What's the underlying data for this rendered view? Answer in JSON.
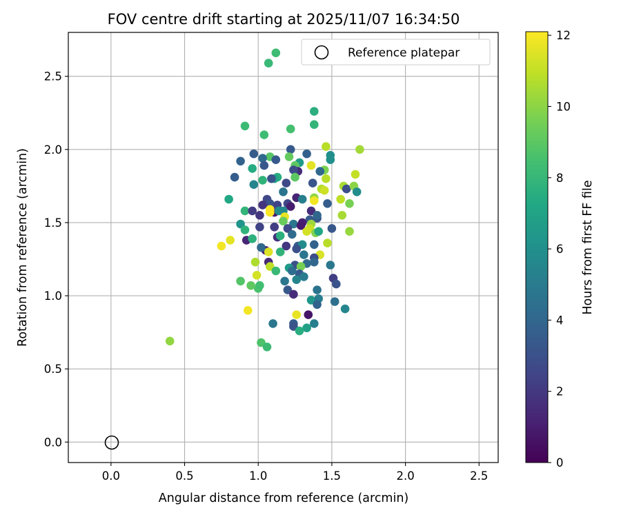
{
  "chart_data": {
    "type": "scatter",
    "title": "FOV centre drift starting at 2025/11/07 16:34:50",
    "xlabel": "Angular distance from reference (arcmin)",
    "ylabel": "Rotation from reference (arcmin)",
    "xlim": [
      -0.29,
      2.63
    ],
    "ylim": [
      -0.14,
      2.8
    ],
    "xticks": [
      "0.0",
      "0.5",
      "1.0",
      "1.5",
      "2.0",
      "2.5"
    ],
    "yticks": [
      "0.0",
      "0.5",
      "1.0",
      "1.5",
      "2.0",
      "2.5"
    ],
    "grid": true,
    "legend": {
      "placement": "top-right",
      "label": "Reference platepar"
    },
    "reference_point": {
      "x": 0.0,
      "y": 0.0
    },
    "colorbar": {
      "label": "Hours from first FF file",
      "range": [
        0,
        12.1
      ],
      "ticks": [
        "0",
        "2",
        "4",
        "6",
        "8",
        "10",
        "12"
      ],
      "colormap": "viridis"
    },
    "points": [
      [
        1.12,
        2.66,
        8.3
      ],
      [
        1.07,
        2.59,
        8.1
      ],
      [
        1.38,
        2.26,
        7.6
      ],
      [
        1.38,
        2.17,
        7.9
      ],
      [
        0.91,
        2.16,
        8.2
      ],
      [
        1.22,
        2.14,
        8.5
      ],
      [
        1.04,
        2.1,
        8.3
      ],
      [
        1.46,
        2.02,
        10.8
      ],
      [
        1.69,
        2.0,
        10.4
      ],
      [
        1.22,
        2.0,
        3.4
      ],
      [
        0.97,
        1.97,
        3.5
      ],
      [
        1.33,
        1.97,
        3.7
      ],
      [
        1.49,
        1.96,
        5.9
      ],
      [
        1.08,
        1.95,
        8.9
      ],
      [
        1.21,
        1.95,
        9.2
      ],
      [
        1.49,
        1.93,
        6.0
      ],
      [
        1.03,
        1.94,
        4.2
      ],
      [
        1.12,
        1.93,
        3.4
      ],
      [
        0.88,
        1.92,
        3.8
      ],
      [
        1.28,
        1.91,
        6.6
      ],
      [
        1.25,
        1.89,
        9.0
      ],
      [
        1.36,
        1.89,
        11.6
      ],
      [
        1.04,
        1.89,
        3.3
      ],
      [
        1.45,
        1.86,
        9.7
      ],
      [
        1.42,
        1.85,
        4.1
      ],
      [
        1.27,
        1.85,
        1.5
      ],
      [
        1.24,
        1.86,
        2.8
      ],
      [
        0.96,
        1.87,
        7.4
      ],
      [
        1.66,
        1.83,
        11.0
      ],
      [
        1.13,
        1.81,
        7.5
      ],
      [
        1.03,
        1.79,
        7.8
      ],
      [
        1.11,
        1.8,
        7.0
      ],
      [
        1.09,
        1.8,
        3.1
      ],
      [
        0.84,
        1.81,
        3.6
      ],
      [
        1.25,
        1.81,
        9.0
      ],
      [
        1.46,
        1.8,
        10.8
      ],
      [
        1.19,
        1.77,
        2.7
      ],
      [
        1.37,
        1.77,
        3.2
      ],
      [
        1.43,
        1.73,
        10.7
      ],
      [
        1.45,
        1.72,
        11.2
      ],
      [
        1.58,
        1.75,
        10.5
      ],
      [
        1.6,
        1.73,
        2.9
      ],
      [
        1.65,
        1.75,
        10.0
      ],
      [
        0.97,
        1.76,
        5.4
      ],
      [
        1.67,
        1.71,
        5.9
      ],
      [
        1.17,
        1.71,
        4.7
      ],
      [
        1.06,
        1.66,
        2.6
      ],
      [
        0.8,
        1.66,
        7.2
      ],
      [
        1.26,
        1.67,
        1.2
      ],
      [
        1.38,
        1.67,
        10.1
      ],
      [
        1.38,
        1.65,
        11.9
      ],
      [
        1.3,
        1.66,
        5.2
      ],
      [
        1.56,
        1.66,
        10.9
      ],
      [
        1.62,
        1.63,
        9.6
      ],
      [
        1.47,
        1.63,
        3.6
      ],
      [
        1.08,
        1.63,
        3.1
      ],
      [
        1.03,
        1.62,
        1.8
      ],
      [
        1.13,
        1.62,
        2.4
      ],
      [
        1.2,
        1.63,
        2.5
      ],
      [
        1.22,
        1.61,
        1.0
      ],
      [
        1.11,
        1.57,
        0.9
      ],
      [
        1.14,
        1.58,
        5.8
      ],
      [
        1.17,
        1.58,
        5.6
      ],
      [
        1.08,
        1.57,
        12.0
      ],
      [
        1.36,
        1.58,
        1.6
      ],
      [
        1.08,
        1.59,
        12.1
      ],
      [
        0.91,
        1.58,
        7.9
      ],
      [
        0.96,
        1.58,
        2.1
      ],
      [
        1.4,
        1.53,
        3.2
      ],
      [
        1.4,
        1.55,
        4.0
      ],
      [
        1.18,
        1.54,
        11.7
      ],
      [
        1.01,
        1.55,
        1.9
      ],
      [
        1.57,
        1.55,
        10.5
      ],
      [
        1.35,
        1.52,
        3.4
      ],
      [
        1.17,
        1.51,
        9.3
      ],
      [
        1.36,
        1.49,
        10.3
      ],
      [
        1.35,
        1.46,
        11.1
      ],
      [
        1.24,
        1.49,
        4.8
      ],
      [
        1.3,
        1.5,
        1.1
      ],
      [
        1.29,
        1.48,
        0.9
      ],
      [
        1.11,
        1.47,
        2.2
      ],
      [
        1.01,
        1.47,
        2.4
      ],
      [
        1.5,
        1.46,
        3.3
      ],
      [
        1.2,
        1.46,
        2.6
      ],
      [
        0.88,
        1.49,
        6.2
      ],
      [
        0.91,
        1.45,
        7.8
      ],
      [
        1.39,
        1.43,
        9.8
      ],
      [
        1.62,
        1.44,
        10.2
      ],
      [
        1.41,
        1.44,
        7.2
      ],
      [
        1.33,
        1.44,
        11.3
      ],
      [
        1.23,
        1.42,
        4.2
      ],
      [
        1.13,
        1.4,
        1.7
      ],
      [
        0.92,
        1.38,
        1.3
      ],
      [
        0.81,
        1.38,
        11.6
      ],
      [
        0.96,
        1.39,
        7.7
      ],
      [
        1.15,
        1.41,
        7.6
      ],
      [
        1.19,
        1.34,
        1.9
      ],
      [
        1.27,
        1.34,
        3.6
      ],
      [
        1.3,
        1.35,
        5.8
      ],
      [
        1.38,
        1.35,
        3.8
      ],
      [
        1.15,
        1.3,
        7.8
      ],
      [
        1.05,
        1.31,
        1.2
      ],
      [
        1.07,
        1.3,
        11.5
      ],
      [
        1.47,
        1.36,
        10.8
      ],
      [
        0.75,
        1.34,
        11.9
      ],
      [
        1.26,
        1.32,
        3.0
      ],
      [
        1.02,
        1.33,
        4.1
      ],
      [
        1.42,
        1.28,
        11.4
      ],
      [
        1.31,
        1.28,
        4.7
      ],
      [
        1.38,
        1.26,
        2.8
      ],
      [
        0.98,
        1.23,
        10.6
      ],
      [
        1.07,
        1.23,
        1.4
      ],
      [
        1.25,
        1.21,
        3.0
      ],
      [
        1.33,
        1.22,
        4.2
      ],
      [
        1.38,
        1.23,
        4.0
      ],
      [
        1.49,
        1.21,
        4.8
      ],
      [
        1.29,
        1.2,
        9.6
      ],
      [
        1.08,
        1.2,
        10.9
      ],
      [
        1.21,
        1.19,
        6.5
      ],
      [
        1.12,
        1.17,
        8.1
      ],
      [
        1.28,
        1.15,
        3.4
      ],
      [
        1.23,
        1.17,
        4.3
      ],
      [
        0.99,
        1.14,
        11.3
      ],
      [
        1.51,
        1.12,
        2.2
      ],
      [
        1.26,
        1.11,
        5.4
      ],
      [
        1.31,
        1.13,
        5.0
      ],
      [
        1.53,
        1.08,
        3.1
      ],
      [
        0.88,
        1.1,
        8.8
      ],
      [
        1.18,
        1.1,
        4.7
      ],
      [
        1.0,
        1.05,
        8.6
      ],
      [
        1.01,
        1.07,
        8.4
      ],
      [
        0.95,
        1.07,
        9.1
      ],
      [
        1.4,
        1.04,
        4.6
      ],
      [
        1.2,
        1.04,
        3.3
      ],
      [
        1.24,
        1.01,
        1.5
      ],
      [
        1.36,
        0.97,
        6.3
      ],
      [
        1.41,
        0.98,
        5.1
      ],
      [
        1.4,
        0.94,
        3.8
      ],
      [
        1.52,
        0.96,
        4.4
      ],
      [
        1.59,
        0.91,
        5.5
      ],
      [
        0.93,
        0.9,
        11.9
      ],
      [
        1.34,
        0.87,
        0.7
      ],
      [
        1.26,
        0.87,
        11.7
      ],
      [
        1.1,
        0.81,
        4.8
      ],
      [
        1.24,
        0.81,
        3.5
      ],
      [
        1.38,
        0.81,
        5.2
      ],
      [
        1.33,
        0.78,
        6.8
      ],
      [
        1.24,
        0.79,
        3.1
      ],
      [
        1.28,
        0.76,
        7.5
      ],
      [
        0.4,
        0.69,
        10.1
      ],
      [
        1.02,
        0.68,
        8.7
      ],
      [
        1.06,
        0.65,
        8.2
      ]
    ]
  }
}
